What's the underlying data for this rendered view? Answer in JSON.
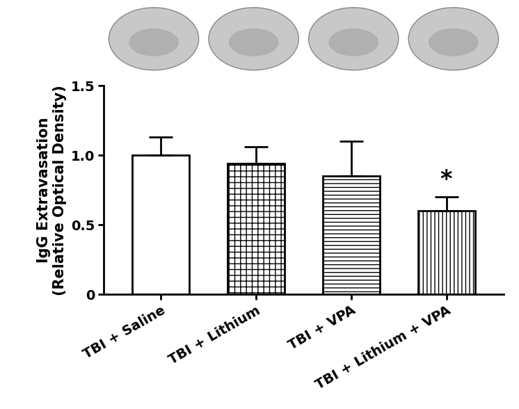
{
  "chart_data": {
    "type": "bar",
    "y_label": "IgG Extravasation\n(Relative Optical Density)",
    "categories": [
      "TBI + Saline",
      "TBI + Lithium",
      "TBI + VPA",
      "TBI + Lithium + VPA"
    ],
    "values": [
      1.0,
      0.94,
      0.85,
      0.6
    ],
    "errors": [
      0.13,
      0.12,
      0.25,
      0.1
    ],
    "color": "#ffffff",
    "ylim": [
      0,
      1.5
    ],
    "yticks": [
      0,
      0.5,
      1.0,
      1.5
    ],
    "grid": false,
    "annotations": [
      {
        "category": "TBI + Lithium + VPA",
        "text": "*"
      }
    ]
  }
}
